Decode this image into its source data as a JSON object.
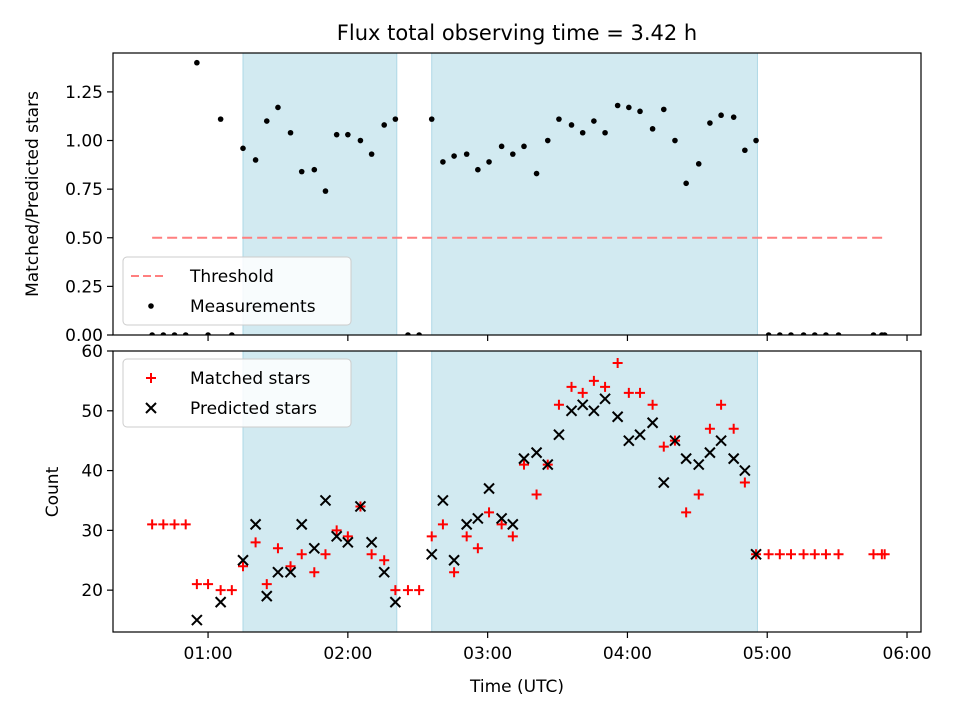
{
  "chart_data": {
    "type": "scatter",
    "title": "Flux total observing time = 3.42 h",
    "xlabel": "Time (UTC)",
    "x_unit": "hours UTC",
    "xlim": [
      0.32,
      6.1
    ],
    "x_ticks": [
      {
        "value": 1.0,
        "label": "01:00"
      },
      {
        "value": 2.0,
        "label": "02:00"
      },
      {
        "value": 3.0,
        "label": "03:00"
      },
      {
        "value": 4.0,
        "label": "04:00"
      },
      {
        "value": 5.0,
        "label": "05:00"
      },
      {
        "value": 6.0,
        "label": "06:00"
      }
    ],
    "shaded_intervals": [
      [
        1.25,
        2.35
      ],
      [
        2.6,
        4.93
      ]
    ],
    "shade_color": "#add8e6",
    "panels": [
      {
        "ylabel": "Matched/Predicted stars",
        "ylim": [
          0,
          1.45
        ],
        "y_ticks": [
          {
            "value": 0.0,
            "label": "0.00"
          },
          {
            "value": 0.25,
            "label": "0.25"
          },
          {
            "value": 0.5,
            "label": "0.50"
          },
          {
            "value": 0.75,
            "label": "0.75"
          },
          {
            "value": 1.0,
            "label": "1.00"
          },
          {
            "value": 1.25,
            "label": "1.25"
          }
        ],
        "threshold": {
          "name": "Threshold",
          "y": 0.5,
          "x_range": [
            0.6,
            5.83
          ],
          "color": "#ff7f7f"
        },
        "series": [
          {
            "name": "Measurements",
            "marker": "dot",
            "color": "#000000",
            "x": [
              0.6,
              0.68,
              0.76,
              0.84,
              0.92,
              1.0,
              1.09,
              1.17,
              1.25,
              1.34,
              1.42,
              1.5,
              1.59,
              1.67,
              1.76,
              1.84,
              1.92,
              2.0,
              2.09,
              2.17,
              2.26,
              2.34,
              2.43,
              2.51,
              2.6,
              2.68,
              2.76,
              2.85,
              2.93,
              3.01,
              3.1,
              3.18,
              3.26,
              3.35,
              3.43,
              3.51,
              3.6,
              3.68,
              3.76,
              3.84,
              3.93,
              4.01,
              4.09,
              4.18,
              4.26,
              4.34,
              4.42,
              4.51,
              4.59,
              4.67,
              4.76,
              4.84,
              4.92,
              5.01,
              5.09,
              5.17,
              5.26,
              5.34,
              5.42,
              5.51,
              5.76,
              5.82,
              5.84
            ],
            "y": [
              0,
              0,
              0,
              0,
              1.4,
              0,
              1.11,
              0,
              0.96,
              0.9,
              1.1,
              1.17,
              1.04,
              0.84,
              0.85,
              0.74,
              1.03,
              1.03,
              1.0,
              0.93,
              1.08,
              1.11,
              0,
              0,
              1.11,
              0.89,
              0.92,
              0.93,
              0.85,
              0.89,
              0.97,
              0.93,
              0.97,
              0.83,
              1.0,
              1.11,
              1.08,
              1.04,
              1.1,
              1.04,
              1.18,
              1.17,
              1.15,
              1.06,
              1.16,
              1.0,
              0.78,
              0.88,
              1.09,
              1.13,
              1.12,
              0.95,
              1.0,
              0,
              0,
              0,
              0,
              0,
              0,
              0,
              0,
              0,
              0
            ]
          }
        ]
      },
      {
        "ylabel": "Count",
        "ylim": [
          13,
          60
        ],
        "y_ticks": [
          {
            "value": 20,
            "label": "20"
          },
          {
            "value": 30,
            "label": "30"
          },
          {
            "value": 40,
            "label": "40"
          },
          {
            "value": 50,
            "label": "50"
          },
          {
            "value": 60,
            "label": "60"
          }
        ],
        "series": [
          {
            "name": "Matched stars",
            "marker": "plus",
            "color": "#ff0000",
            "x": [
              0.6,
              0.68,
              0.76,
              0.84,
              0.92,
              1.0,
              1.09,
              1.17,
              1.25,
              1.34,
              1.42,
              1.5,
              1.59,
              1.67,
              1.76,
              1.84,
              1.92,
              2.0,
              2.09,
              2.17,
              2.26,
              2.34,
              2.43,
              2.51,
              2.6,
              2.68,
              2.76,
              2.85,
              2.93,
              3.01,
              3.1,
              3.18,
              3.26,
              3.35,
              3.43,
              3.51,
              3.6,
              3.68,
              3.76,
              3.84,
              3.93,
              4.01,
              4.09,
              4.18,
              4.26,
              4.34,
              4.42,
              4.51,
              4.59,
              4.67,
              4.76,
              4.84,
              4.92,
              5.01,
              5.09,
              5.17,
              5.26,
              5.34,
              5.42,
              5.51,
              5.76,
              5.82,
              5.84
            ],
            "y": [
              31,
              31,
              31,
              31,
              21,
              21,
              20,
              20,
              24,
              28,
              21,
              27,
              24,
              26,
              23,
              26,
              30,
              29,
              34,
              26,
              25,
              20,
              20,
              20,
              29,
              31,
              23,
              29,
              27,
              33,
              31,
              29,
              41,
              36,
              41,
              51,
              54,
              53,
              55,
              54,
              58,
              53,
              53,
              51,
              44,
              45,
              33,
              36,
              47,
              51,
              47,
              38,
              26,
              26,
              26,
              26,
              26,
              26,
              26,
              26,
              26,
              26,
              26
            ]
          },
          {
            "name": "Predicted stars",
            "marker": "x",
            "color": "#000000",
            "x": [
              0.92,
              1.09,
              1.25,
              1.34,
              1.42,
              1.5,
              1.59,
              1.67,
              1.76,
              1.84,
              1.92,
              2.0,
              2.09,
              2.17,
              2.26,
              2.34,
              2.6,
              2.68,
              2.76,
              2.85,
              2.93,
              3.01,
              3.1,
              3.18,
              3.26,
              3.35,
              3.43,
              3.51,
              3.6,
              3.68,
              3.76,
              3.84,
              3.93,
              4.01,
              4.09,
              4.18,
              4.26,
              4.34,
              4.42,
              4.51,
              4.59,
              4.67,
              4.76,
              4.84,
              4.92
            ],
            "y": [
              15,
              18,
              25,
              31,
              19,
              23,
              23,
              31,
              27,
              35,
              29,
              28,
              34,
              28,
              23,
              18,
              26,
              35,
              25,
              31,
              32,
              37,
              32,
              31,
              42,
              43,
              41,
              46,
              50,
              51,
              50,
              52,
              49,
              45,
              46,
              48,
              38,
              45,
              42,
              41,
              43,
              45,
              42,
              40,
              26
            ]
          }
        ]
      }
    ],
    "legend_placement": "upper-left"
  }
}
